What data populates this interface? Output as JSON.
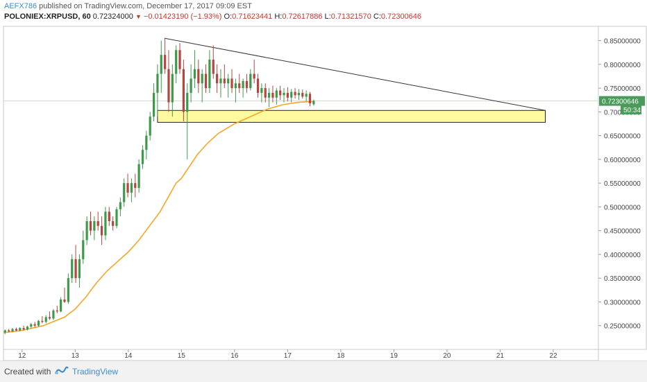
{
  "header": {
    "author": "AEFX786",
    "published_text": "published on TradingView.com, December 17, 2017 09:09 EST",
    "symbol": "POLONIEX:XRPUSD, 60",
    "last": "0.72324000",
    "change": "−0.01423190 (−1.93%)",
    "o_label": "O:",
    "o_value": "0.71623441",
    "h_label": "H:",
    "h_value": "0.72617886",
    "l_label": "L:",
    "l_value": "0.71321570",
    "c_label": "C:",
    "c_value": "0.72300646"
  },
  "footer": {
    "created_with": "Created with",
    "brand": "TradingView"
  },
  "colors": {
    "up": "#3c9a4a",
    "down": "#b5463f",
    "ma": "#f5a623",
    "zone_fill": "#fff9a0",
    "zone_stroke": "#222222",
    "trendline": "#333333",
    "price_tag": "#4a9a5a",
    "time_tag": "#4a9a5a"
  },
  "chart_data": {
    "type": "candlestick",
    "y_ticks": [
      "0.85000000",
      "0.80000000",
      "0.75000000",
      "0.70000000",
      "0.65000000",
      "0.60000000",
      "0.55000000",
      "0.50000000",
      "0.45000000",
      "0.40000000",
      "0.35000000",
      "0.30000000",
      "0.25000000"
    ],
    "y_tick_values": [
      0.85,
      0.8,
      0.75,
      0.7,
      0.65,
      0.6,
      0.55,
      0.5,
      0.45,
      0.4,
      0.35,
      0.3,
      0.25
    ],
    "ylim": [
      0.2,
      0.88
    ],
    "x_ticks": [
      "12",
      "13",
      "14",
      "15",
      "16",
      "17",
      "18",
      "19",
      "20",
      "21",
      "22"
    ],
    "x_tick_values": [
      12,
      13,
      14,
      15,
      16,
      17,
      18,
      19,
      20,
      21,
      22
    ],
    "xlim": [
      11.65,
      22.85
    ],
    "price_tag": "0.72300646",
    "price_tag_value": 0.723,
    "time_tag": "50:34",
    "time_tag_value": 0.705,
    "zone": {
      "x_start": 14.55,
      "x_end": 21.85,
      "y_low": 0.678,
      "y_high": 0.703
    },
    "trendline": {
      "x1": 14.68,
      "y1": 0.855,
      "x2": 21.85,
      "y2": 0.703
    },
    "moving_average": {
      "x": [
        11.65,
        12.0,
        12.4,
        12.8,
        13.0,
        13.2,
        13.4,
        13.6,
        13.8,
        14.0,
        14.2,
        14.4,
        14.6,
        14.75,
        14.9,
        15.0,
        15.15,
        15.3,
        15.5,
        15.7,
        16.0,
        16.3,
        16.6,
        16.9,
        17.2,
        17.5
      ],
      "y": [
        0.235,
        0.24,
        0.25,
        0.268,
        0.285,
        0.31,
        0.34,
        0.365,
        0.385,
        0.405,
        0.43,
        0.46,
        0.49,
        0.52,
        0.55,
        0.56,
        0.585,
        0.61,
        0.635,
        0.655,
        0.675,
        0.69,
        0.705,
        0.715,
        0.72,
        0.722
      ]
    },
    "candles": [
      [
        11.68,
        0.236,
        0.242,
        0.232,
        0.24
      ],
      [
        11.75,
        0.24,
        0.243,
        0.236,
        0.238
      ],
      [
        11.82,
        0.238,
        0.245,
        0.236,
        0.243
      ],
      [
        11.89,
        0.243,
        0.246,
        0.238,
        0.24
      ],
      [
        11.96,
        0.24,
        0.247,
        0.238,
        0.245
      ],
      [
        12.03,
        0.245,
        0.25,
        0.24,
        0.242
      ],
      [
        12.1,
        0.242,
        0.25,
        0.24,
        0.248
      ],
      [
        12.17,
        0.248,
        0.256,
        0.244,
        0.253
      ],
      [
        12.24,
        0.253,
        0.258,
        0.246,
        0.25
      ],
      [
        12.31,
        0.25,
        0.262,
        0.248,
        0.26
      ],
      [
        12.38,
        0.26,
        0.27,
        0.255,
        0.258
      ],
      [
        12.45,
        0.258,
        0.272,
        0.255,
        0.268
      ],
      [
        12.52,
        0.268,
        0.28,
        0.262,
        0.265
      ],
      [
        12.59,
        0.265,
        0.285,
        0.262,
        0.282
      ],
      [
        12.66,
        0.282,
        0.292,
        0.276,
        0.28
      ],
      [
        12.73,
        0.28,
        0.31,
        0.278,
        0.305
      ],
      [
        12.8,
        0.305,
        0.33,
        0.298,
        0.3
      ],
      [
        12.87,
        0.3,
        0.36,
        0.296,
        0.35
      ],
      [
        12.94,
        0.35,
        0.4,
        0.34,
        0.39
      ],
      [
        13.01,
        0.39,
        0.42,
        0.34,
        0.35
      ],
      [
        13.08,
        0.35,
        0.4,
        0.33,
        0.39
      ],
      [
        13.15,
        0.39,
        0.45,
        0.38,
        0.43
      ],
      [
        13.22,
        0.43,
        0.48,
        0.42,
        0.47
      ],
      [
        13.29,
        0.47,
        0.49,
        0.44,
        0.45
      ],
      [
        13.36,
        0.45,
        0.48,
        0.43,
        0.47
      ],
      [
        13.43,
        0.47,
        0.49,
        0.45,
        0.46
      ],
      [
        13.5,
        0.46,
        0.48,
        0.42,
        0.44
      ],
      [
        13.57,
        0.44,
        0.5,
        0.43,
        0.49
      ],
      [
        13.64,
        0.49,
        0.5,
        0.46,
        0.47
      ],
      [
        13.71,
        0.47,
        0.48,
        0.45,
        0.46
      ],
      [
        13.78,
        0.46,
        0.5,
        0.455,
        0.495
      ],
      [
        13.85,
        0.495,
        0.52,
        0.48,
        0.51
      ],
      [
        13.92,
        0.51,
        0.56,
        0.5,
        0.55
      ],
      [
        13.99,
        0.55,
        0.57,
        0.52,
        0.53
      ],
      [
        14.06,
        0.53,
        0.56,
        0.51,
        0.55
      ],
      [
        14.13,
        0.55,
        0.57,
        0.52,
        0.54
      ],
      [
        14.2,
        0.54,
        0.6,
        0.53,
        0.59
      ],
      [
        14.27,
        0.59,
        0.63,
        0.58,
        0.62
      ],
      [
        14.34,
        0.62,
        0.66,
        0.6,
        0.65
      ],
      [
        14.41,
        0.65,
        0.7,
        0.64,
        0.69
      ],
      [
        14.48,
        0.69,
        0.76,
        0.68,
        0.74
      ],
      [
        14.55,
        0.74,
        0.8,
        0.69,
        0.78
      ],
      [
        14.62,
        0.78,
        0.85,
        0.74,
        0.82
      ],
      [
        14.69,
        0.82,
        0.855,
        0.78,
        0.79
      ],
      [
        14.76,
        0.79,
        0.83,
        0.7,
        0.72
      ],
      [
        14.83,
        0.72,
        0.8,
        0.69,
        0.78
      ],
      [
        14.9,
        0.78,
        0.84,
        0.76,
        0.83
      ],
      [
        14.97,
        0.83,
        0.845,
        0.78,
        0.79
      ],
      [
        15.04,
        0.79,
        0.81,
        0.68,
        0.7
      ],
      [
        15.11,
        0.7,
        0.76,
        0.6,
        0.74
      ],
      [
        15.18,
        0.74,
        0.8,
        0.72,
        0.77
      ],
      [
        15.25,
        0.77,
        0.83,
        0.75,
        0.79
      ],
      [
        15.32,
        0.79,
        0.81,
        0.74,
        0.76
      ],
      [
        15.39,
        0.76,
        0.79,
        0.72,
        0.78
      ],
      [
        15.46,
        0.78,
        0.8,
        0.74,
        0.75
      ],
      [
        15.53,
        0.75,
        0.83,
        0.74,
        0.81
      ],
      [
        15.6,
        0.81,
        0.84,
        0.77,
        0.78
      ],
      [
        15.67,
        0.78,
        0.8,
        0.74,
        0.76
      ],
      [
        15.74,
        0.76,
        0.79,
        0.73,
        0.77
      ],
      [
        15.81,
        0.77,
        0.8,
        0.75,
        0.76
      ],
      [
        15.88,
        0.76,
        0.78,
        0.73,
        0.77
      ],
      [
        15.95,
        0.77,
        0.79,
        0.74,
        0.75
      ],
      [
        16.02,
        0.75,
        0.77,
        0.72,
        0.76
      ],
      [
        16.09,
        0.76,
        0.78,
        0.74,
        0.75
      ],
      [
        16.16,
        0.75,
        0.77,
        0.73,
        0.765
      ],
      [
        16.23,
        0.765,
        0.78,
        0.74,
        0.75
      ],
      [
        16.3,
        0.75,
        0.79,
        0.745,
        0.78
      ],
      [
        16.37,
        0.78,
        0.81,
        0.76,
        0.77
      ],
      [
        16.44,
        0.77,
        0.78,
        0.73,
        0.74
      ],
      [
        16.51,
        0.74,
        0.76,
        0.72,
        0.75
      ],
      [
        16.58,
        0.75,
        0.76,
        0.72,
        0.73
      ],
      [
        16.65,
        0.73,
        0.75,
        0.71,
        0.74
      ],
      [
        16.72,
        0.74,
        0.755,
        0.72,
        0.73
      ],
      [
        16.79,
        0.73,
        0.75,
        0.715,
        0.745
      ],
      [
        16.86,
        0.745,
        0.755,
        0.725,
        0.735
      ],
      [
        16.93,
        0.735,
        0.75,
        0.72,
        0.74
      ],
      [
        17.0,
        0.74,
        0.752,
        0.722,
        0.73
      ],
      [
        17.07,
        0.73,
        0.748,
        0.72,
        0.742
      ],
      [
        17.14,
        0.742,
        0.75,
        0.728,
        0.735
      ],
      [
        17.21,
        0.735,
        0.748,
        0.725,
        0.74
      ],
      [
        17.28,
        0.74,
        0.747,
        0.728,
        0.732
      ],
      [
        17.35,
        0.732,
        0.745,
        0.722,
        0.738
      ],
      [
        17.42,
        0.738,
        0.742,
        0.712,
        0.718
      ],
      [
        17.49,
        0.716,
        0.726,
        0.713,
        0.723
      ]
    ]
  }
}
